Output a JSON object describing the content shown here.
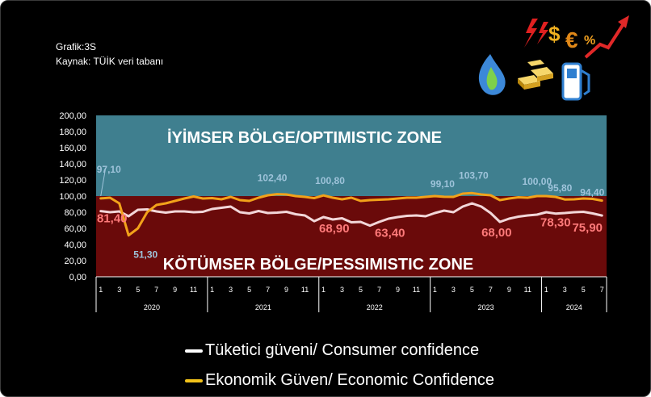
{
  "header": {
    "grafik": "Grafik:3S",
    "source": "Kaynak: TÜİK veri tabanı"
  },
  "icons": [
    "lightning-icon",
    "dollar-icon",
    "euro-icon",
    "percent-icon",
    "trend-up-arrow-icon",
    "gas-flame-icon",
    "gold-bars-icon",
    "fuel-pump-icon"
  ],
  "colors": {
    "optimistic_zone": "#3f7f8f",
    "pessimistic_zone": "#6a0a0a",
    "consumer_line": "#f2d6d8",
    "economic_line": "#f2a21a",
    "consumer_label": "#ff7a7a",
    "economic_label": "#9ec3da",
    "zone_text": "#ffffff"
  },
  "zones": {
    "optimistic": "İYİMSER BÖLGE/OPTIMISTIC ZONE",
    "pessimistic": "KÖTÜMSER BÖLGE/PESSIMISTIC ZONE"
  },
  "legend": [
    {
      "name": "Tüketici güveni/ Consumer confidence",
      "color": "#ffffff"
    },
    {
      "name": "Ekonomik Güven/ Economic Confidence",
      "color": "#f2c21a"
    }
  ],
  "chart_data": {
    "type": "line",
    "ylim": [
      0,
      200
    ],
    "yticks": [
      "0,00",
      "20,00",
      "40,00",
      "60,00",
      "80,00",
      "100,00",
      "120,00",
      "140,00",
      "160,00",
      "180,00",
      "200,00"
    ],
    "threshold": 100,
    "x": [
      "2020-01",
      "2020-02",
      "2020-03",
      "2020-04",
      "2020-05",
      "2020-06",
      "2020-07",
      "2020-08",
      "2020-09",
      "2020-10",
      "2020-11",
      "2020-12",
      "2021-01",
      "2021-02",
      "2021-03",
      "2021-04",
      "2021-05",
      "2021-06",
      "2021-07",
      "2021-08",
      "2021-09",
      "2021-10",
      "2021-11",
      "2021-12",
      "2022-01",
      "2022-02",
      "2022-03",
      "2022-04",
      "2022-05",
      "2022-06",
      "2022-07",
      "2022-08",
      "2022-09",
      "2022-10",
      "2022-11",
      "2022-12",
      "2023-01",
      "2023-02",
      "2023-03",
      "2023-04",
      "2023-05",
      "2023-06",
      "2023-07",
      "2023-08",
      "2023-09",
      "2023-10",
      "2023-11",
      "2023-12",
      "2024-01",
      "2024-02",
      "2024-03",
      "2024-04",
      "2024-05",
      "2024-06",
      "2024-07"
    ],
    "x_tick_labels": [
      "1",
      "",
      "3",
      "",
      "5",
      "",
      "7",
      "",
      "9",
      "",
      "11",
      "",
      "1",
      "",
      "3",
      "",
      "5",
      "",
      "7",
      "",
      "9",
      "",
      "11",
      "",
      "1",
      "",
      "3",
      "",
      "5",
      "",
      "7",
      "",
      "9",
      "",
      "11",
      "",
      "1",
      "",
      "3",
      "",
      "5",
      "",
      "7",
      "",
      "9",
      "",
      "11",
      "",
      "1",
      "",
      "3",
      "",
      "5",
      "",
      "7"
    ],
    "years": [
      {
        "label": "2020",
        "months": 12
      },
      {
        "label": "2021",
        "months": 12
      },
      {
        "label": "2022",
        "months": 12
      },
      {
        "label": "2023",
        "months": 12
      },
      {
        "label": "2024",
        "months": 7
      }
    ],
    "series": [
      {
        "name": "Tüketici güveni/ Consumer confidence",
        "values": [
          81.4,
          80.0,
          81.0,
          75.0,
          83.0,
          83.5,
          81.0,
          79.5,
          81.0,
          81.0,
          80.0,
          80.5,
          84.0,
          85.5,
          87.0,
          80.0,
          78.5,
          81.5,
          79.0,
          79.5,
          80.5,
          77.5,
          76.0,
          68.9,
          74.0,
          71.0,
          72.5,
          67.5,
          68.0,
          63.4,
          68.0,
          72.0,
          74.0,
          75.5,
          76.0,
          75.0,
          79.0,
          82.0,
          80.0,
          87.0,
          91.0,
          87.0,
          79.0,
          68.0,
          72.0,
          74.5,
          76.0,
          77.0,
          80.0,
          78.3,
          79.0,
          80.0,
          80.5,
          78.5,
          75.9
        ]
      },
      {
        "name": "Ekonomik Güven/ Economic Confidence",
        "values": [
          97.1,
          98.0,
          91.0,
          51.3,
          60.0,
          80.0,
          89.0,
          91.0,
          94.0,
          97.0,
          99.5,
          97.0,
          97.5,
          96.0,
          99.0,
          95.0,
          94.0,
          98.0,
          101.0,
          102.4,
          102.0,
          100.0,
          99.0,
          97.5,
          100.8,
          98.0,
          96.0,
          98.0,
          94.0,
          95.0,
          95.5,
          96.0,
          97.0,
          98.0,
          98.0,
          99.0,
          100.0,
          99.1,
          99.0,
          103.0,
          103.7,
          102.0,
          101.0,
          95.0,
          97.0,
          98.5,
          98.0,
          100.0,
          100.0,
          99.0,
          95.8,
          96.0,
          97.0,
          96.5,
          94.4
        ]
      }
    ],
    "data_labels": [
      {
        "series": 0,
        "index": 0,
        "text": "81,40"
      },
      {
        "series": 0,
        "index": 23,
        "text": "68,90"
      },
      {
        "series": 0,
        "index": 29,
        "text": "63,40"
      },
      {
        "series": 0,
        "index": 43,
        "text": "68,00"
      },
      {
        "series": 0,
        "index": 49,
        "text": "78,30"
      },
      {
        "series": 0,
        "index": 54,
        "text": "75,90"
      },
      {
        "series": 1,
        "index": 0,
        "text": "97,10"
      },
      {
        "series": 1,
        "index": 3,
        "text": "51,30"
      },
      {
        "series": 1,
        "index": 19,
        "text": "102,40"
      },
      {
        "series": 1,
        "index": 24,
        "text": "100,80"
      },
      {
        "series": 1,
        "index": 37,
        "text": "99,10"
      },
      {
        "series": 1,
        "index": 40,
        "text": "103,70"
      },
      {
        "series": 1,
        "index": 47,
        "text": "100,00"
      },
      {
        "series": 1,
        "index": 50,
        "text": "95,80"
      },
      {
        "series": 1,
        "index": 54,
        "text": "94,40"
      }
    ]
  }
}
